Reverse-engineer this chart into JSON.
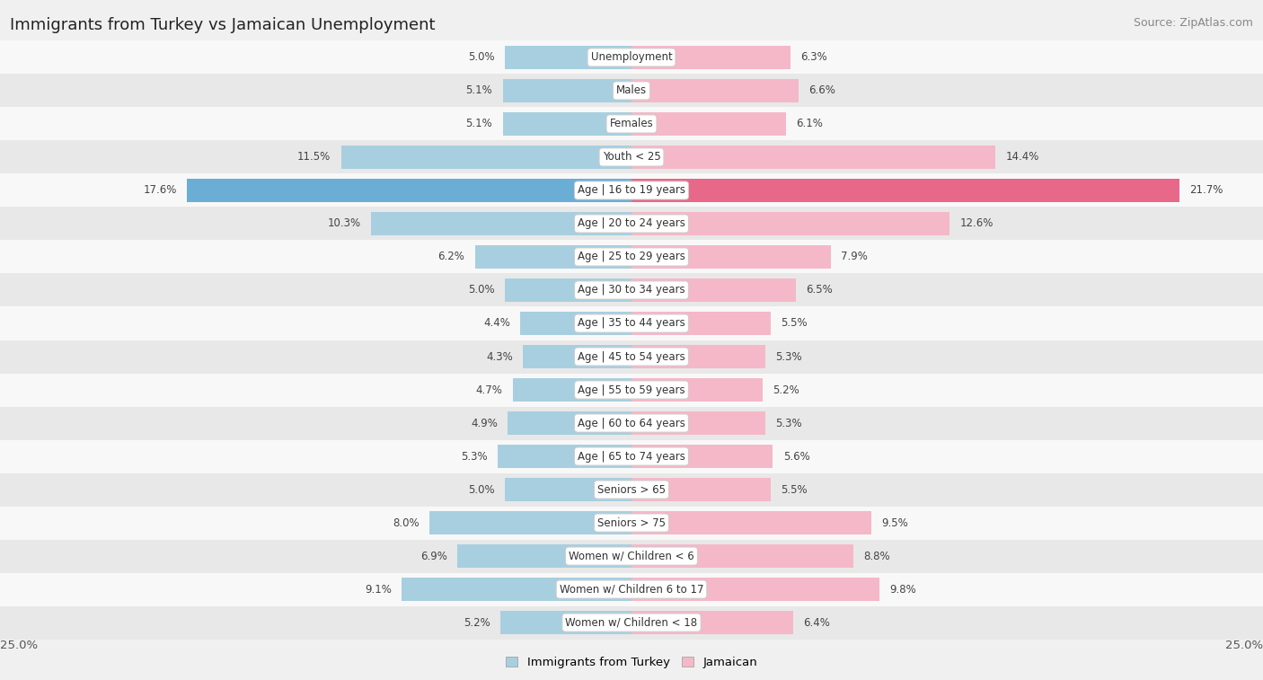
{
  "title": "Immigrants from Turkey vs Jamaican Unemployment",
  "source": "Source: ZipAtlas.com",
  "categories": [
    "Unemployment",
    "Males",
    "Females",
    "Youth < 25",
    "Age | 16 to 19 years",
    "Age | 20 to 24 years",
    "Age | 25 to 29 years",
    "Age | 30 to 34 years",
    "Age | 35 to 44 years",
    "Age | 45 to 54 years",
    "Age | 55 to 59 years",
    "Age | 60 to 64 years",
    "Age | 65 to 74 years",
    "Seniors > 65",
    "Seniors > 75",
    "Women w/ Children < 6",
    "Women w/ Children 6 to 17",
    "Women w/ Children < 18"
  ],
  "turkey_values": [
    5.0,
    5.1,
    5.1,
    11.5,
    17.6,
    10.3,
    6.2,
    5.0,
    4.4,
    4.3,
    4.7,
    4.9,
    5.3,
    5.0,
    8.0,
    6.9,
    9.1,
    5.2
  ],
  "jamaican_values": [
    6.3,
    6.6,
    6.1,
    14.4,
    21.7,
    12.6,
    7.9,
    6.5,
    5.5,
    5.3,
    5.2,
    5.3,
    5.6,
    5.5,
    9.5,
    8.8,
    9.8,
    6.4
  ],
  "turkey_color": "#a8cfe0",
  "jamaican_color": "#f5b8c8",
  "highlight_turkey_color": "#6aaed6",
  "highlight_jamaican_color": "#e8688a",
  "axis_max": 25.0,
  "bg_color": "#f0f0f0",
  "row_bg_even": "#f8f8f8",
  "row_bg_odd": "#e8e8e8",
  "label_fontsize": 8.5,
  "value_fontsize": 8.5,
  "title_fontsize": 13,
  "source_fontsize": 9,
  "legend_fontsize": 9.5,
  "legend_turkey": "Immigrants from Turkey",
  "legend_jamaican": "Jamaican"
}
